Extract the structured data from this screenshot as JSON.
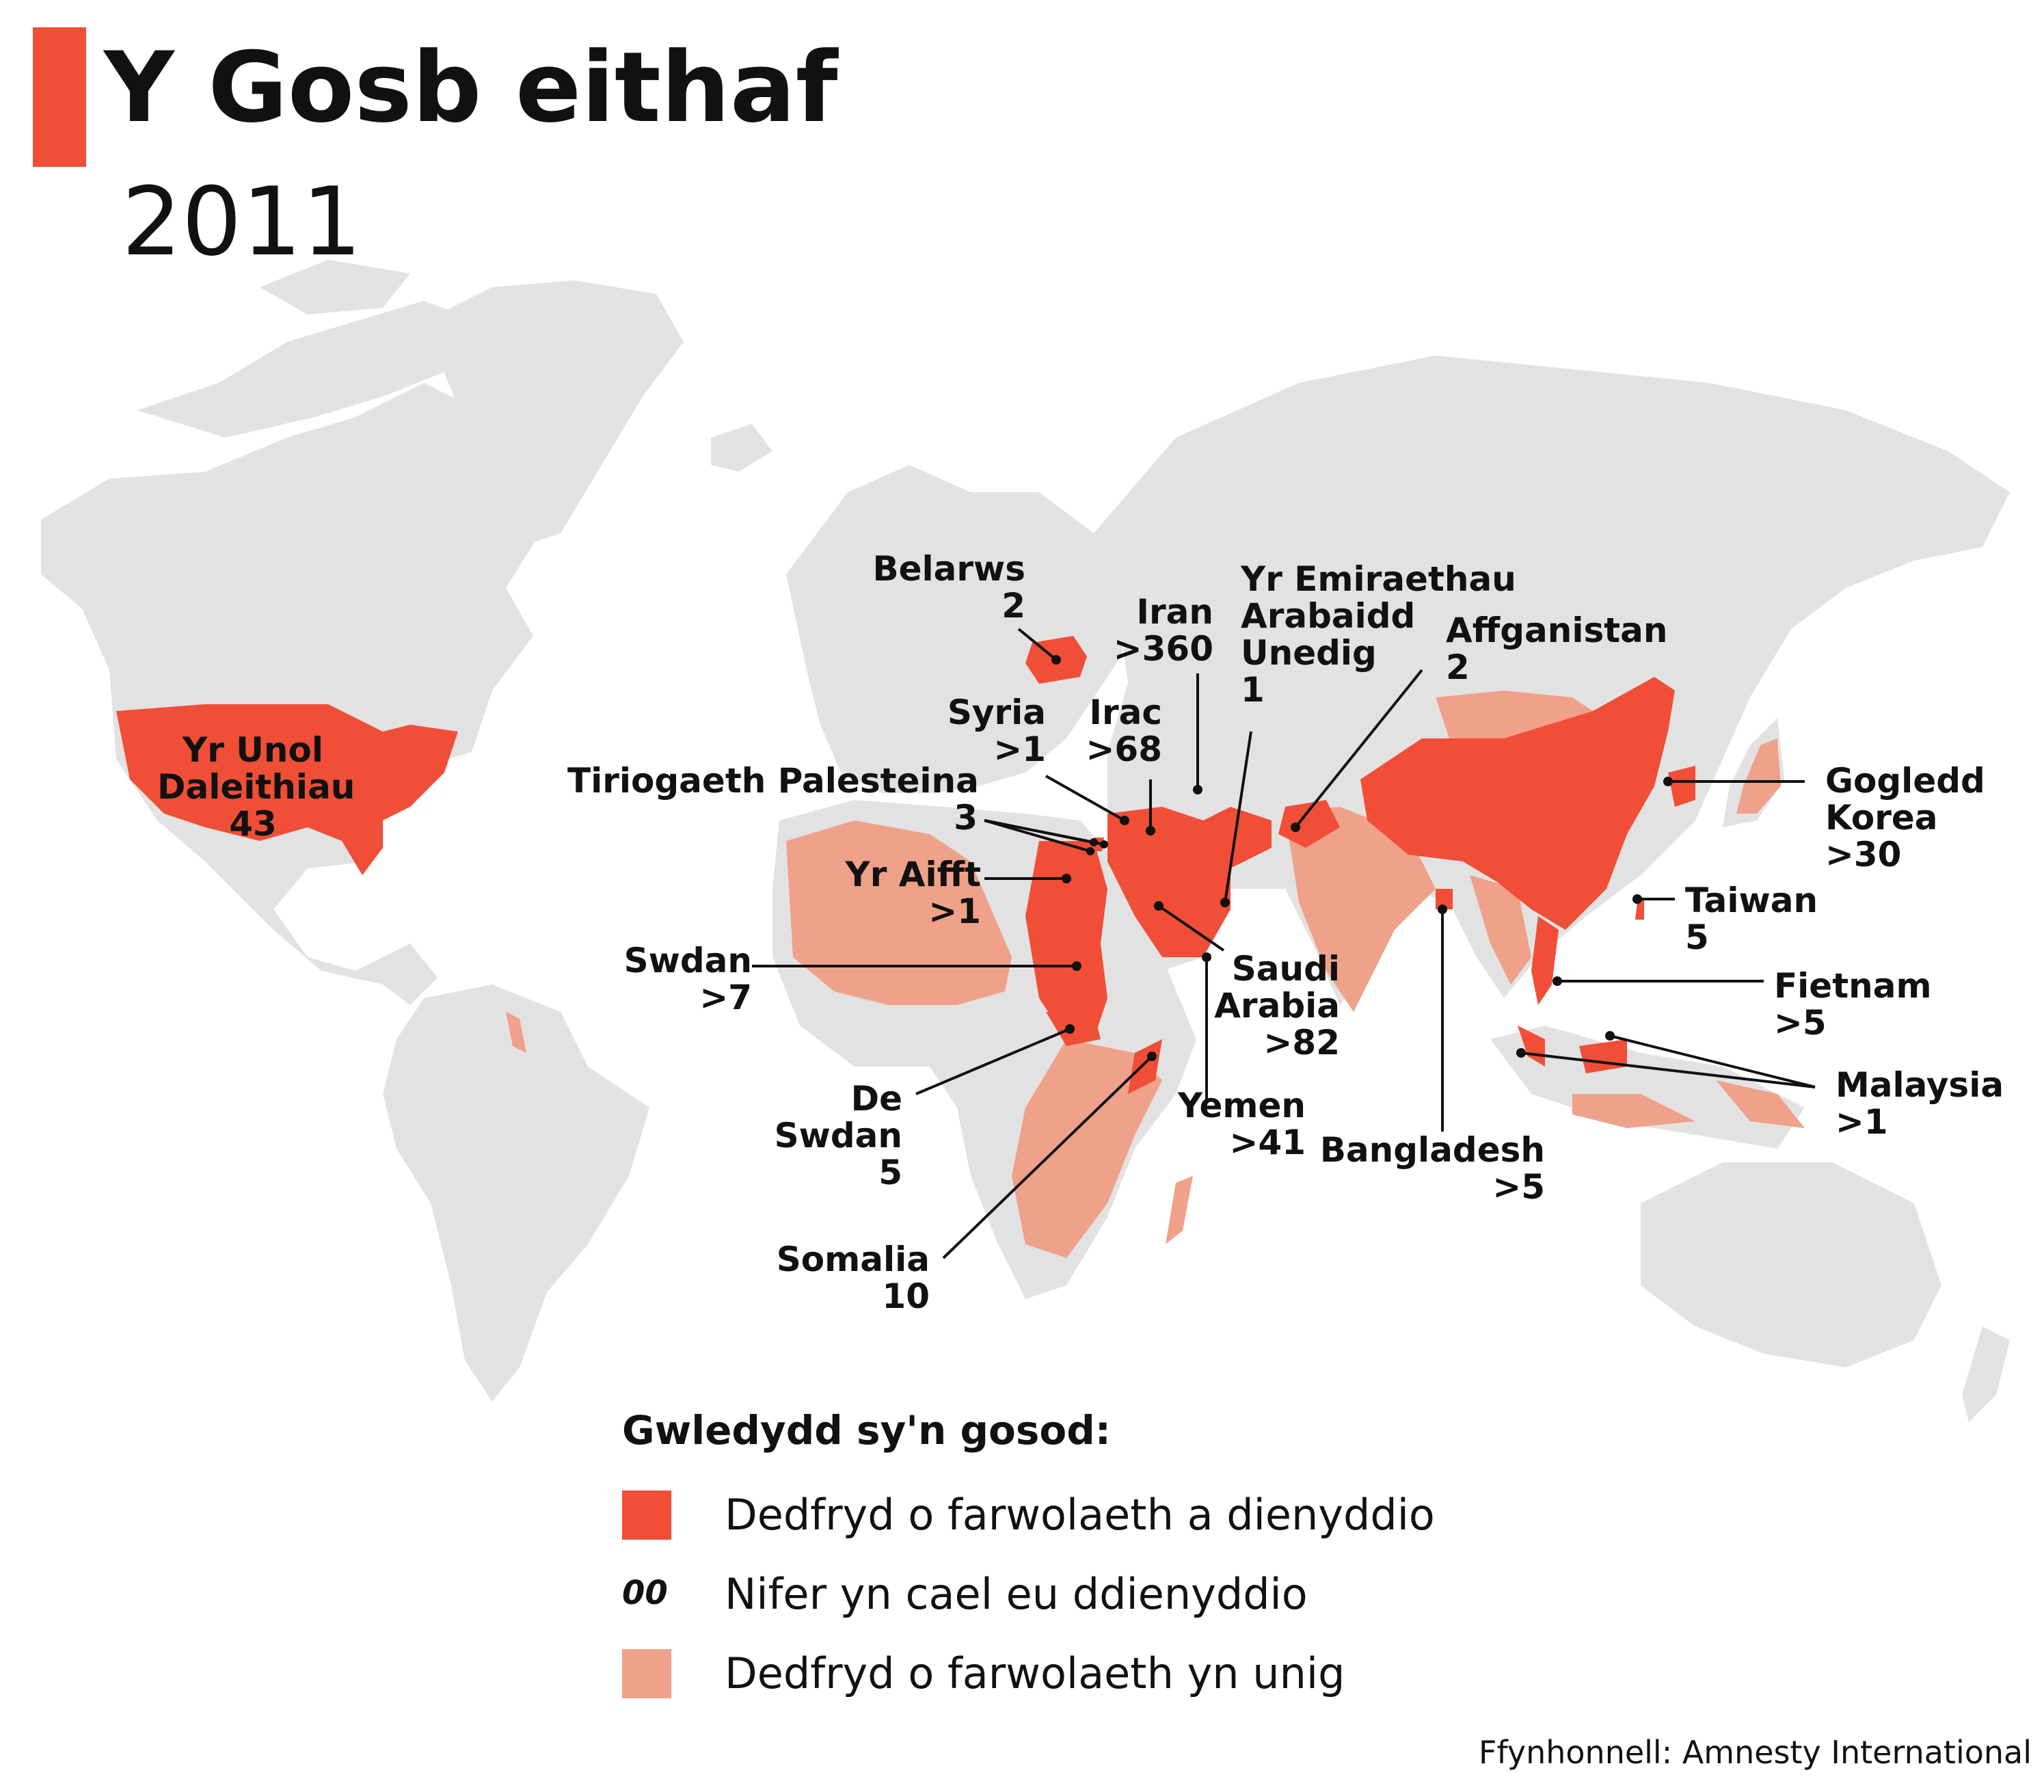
{
  "title": "Y Gosb eithaf",
  "subtitle": "2011",
  "colors": {
    "land": "#e2e2e2",
    "executions": "#f04e37",
    "sentences_only": "#f0a18a",
    "text": "#111111",
    "background": "#ffffff"
  },
  "countries": [
    {
      "id": "usa",
      "lines": [
        "Yr Unol",
        "Daleithiau",
        "43"
      ],
      "category": "executions"
    },
    {
      "id": "belarus",
      "lines": [
        "Belarws",
        "2"
      ],
      "category": "executions"
    },
    {
      "id": "iran",
      "lines": [
        "Iran",
        ">360"
      ],
      "category": "executions"
    },
    {
      "id": "uae",
      "lines": [
        "Yr Emiraethau",
        "Arabaidd",
        "Unedig",
        "1"
      ],
      "category": "executions"
    },
    {
      "id": "afghanistan",
      "lines": [
        "Affganistan",
        "2"
      ],
      "category": "executions"
    },
    {
      "id": "syria",
      "lines": [
        "Syria",
        ">1"
      ],
      "category": "executions"
    },
    {
      "id": "iraq",
      "lines": [
        "Irac",
        ">68"
      ],
      "category": "executions"
    },
    {
      "id": "palestine",
      "lines": [
        "Tiriogaeth Palesteina",
        "3"
      ],
      "category": "executions"
    },
    {
      "id": "egypt",
      "lines": [
        "Yr Aifft",
        ">1"
      ],
      "category": "executions"
    },
    {
      "id": "sudan",
      "lines": [
        "Swdan",
        ">7"
      ],
      "category": "executions"
    },
    {
      "id": "south_sudan",
      "lines": [
        "De",
        "Swdan",
        "5"
      ],
      "category": "executions"
    },
    {
      "id": "somalia",
      "lines": [
        "Somalia",
        "10"
      ],
      "category": "executions"
    },
    {
      "id": "saudi",
      "lines": [
        "Saudi",
        "Arabia",
        ">82"
      ],
      "category": "executions"
    },
    {
      "id": "yemen",
      "lines": [
        "Yemen",
        ">41"
      ],
      "category": "executions"
    },
    {
      "id": "bangladesh",
      "lines": [
        "Bangladesh",
        ">5"
      ],
      "category": "executions"
    },
    {
      "id": "north_korea",
      "lines": [
        "Gogledd",
        "Korea",
        ">30"
      ],
      "category": "executions"
    },
    {
      "id": "taiwan",
      "lines": [
        "Taiwan",
        "5"
      ],
      "category": "executions"
    },
    {
      "id": "vietnam",
      "lines": [
        "Fietnam",
        ">5"
      ],
      "category": "executions"
    },
    {
      "id": "malaysia",
      "lines": [
        "Malaysia",
        ">1"
      ],
      "category": "executions"
    }
  ],
  "legend": {
    "title": "Gwledydd sy'n gosod:",
    "items": [
      {
        "marker": "swatch",
        "color": "#f04e37",
        "label": "Dedfryd o farwolaeth a dienyddio"
      },
      {
        "marker": "number",
        "sample": "00",
        "label": "Nifer yn cael eu ddienyddio"
      },
      {
        "marker": "swatch",
        "color": "#f0a18a",
        "label": "Dedfryd o farwolaeth yn unig"
      }
    ]
  },
  "source": "Ffynhonnell: Amnesty International"
}
